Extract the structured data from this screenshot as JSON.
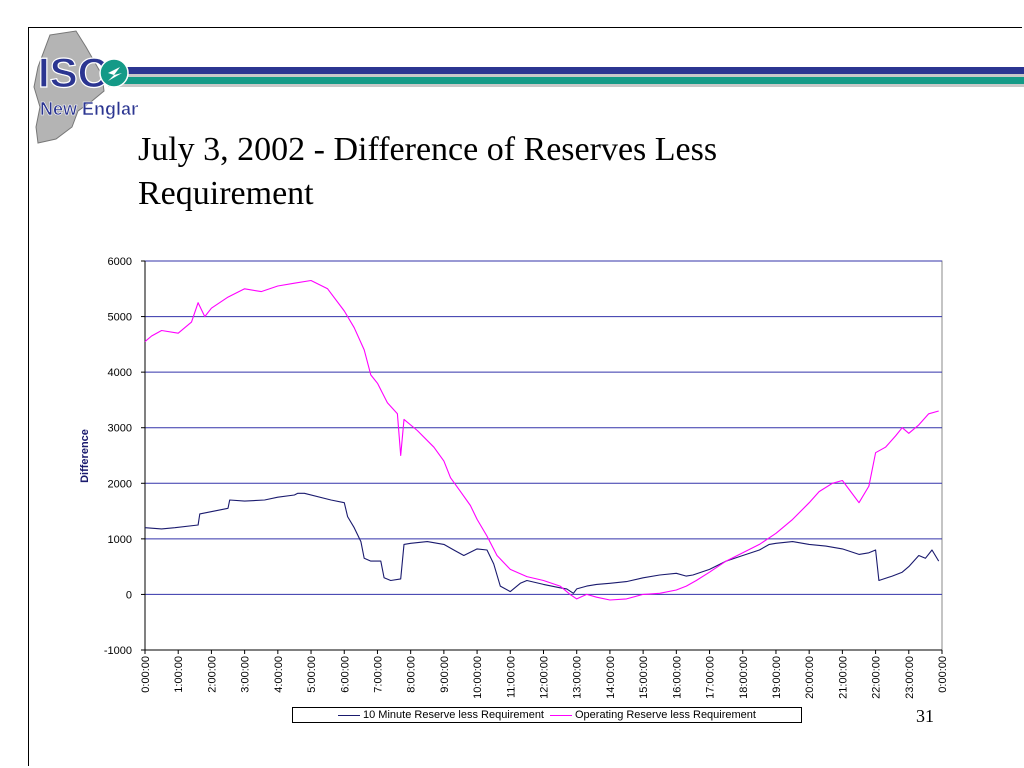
{
  "slide": {
    "title_line1": "July 3, 2002 - Difference of Reserves Less",
    "title_line2": "Requirement",
    "page_number": "31",
    "logo_text": "New England",
    "logo_mark": "ISO"
  },
  "colors": {
    "navy": "#2b3591",
    "teal": "#149a87",
    "series1": "#1a1a6e",
    "series2": "#ff00ff",
    "grid": "#3333aa"
  },
  "chart_data": {
    "type": "line",
    "title": "",
    "xlabel": "",
    "ylabel": "Difference",
    "ylim": [
      -1000,
      6000
    ],
    "yticks": [
      -1000,
      0,
      1000,
      2000,
      3000,
      4000,
      5000,
      6000
    ],
    "xlim": [
      0,
      24
    ],
    "grid": "horizontal",
    "legend": "bottom",
    "x_ticks": [
      "0:00:00",
      "1:00:00",
      "2:00:00",
      "3:00:00",
      "4:00:00",
      "5:00:00",
      "6:00:00",
      "7:00:00",
      "8:00:00",
      "9:00:00",
      "10:00:00",
      "11:00:00",
      "12:00:00",
      "13:00:00",
      "14:00:00",
      "15:00:00",
      "16:00:00",
      "17:00:00",
      "18:00:00",
      "19:00:00",
      "20:00:00",
      "21:00:00",
      "22:00:00",
      "23:00:00",
      "0:00:00"
    ],
    "series": [
      {
        "name": "10 Minute Reserve less Requirement",
        "color": "#1a1a6e",
        "x": [
          0,
          0.5,
          0.9,
          1.6,
          1.65,
          2.5,
          2.55,
          3.0,
          3.6,
          4.0,
          4.5,
          4.6,
          4.8,
          5.6,
          6.0,
          6.1,
          6.3,
          6.5,
          6.6,
          6.8,
          7.1,
          7.2,
          7.4,
          7.7,
          7.8,
          8.0,
          8.5,
          9.0,
          9.3,
          9.6,
          10.0,
          10.3,
          10.5,
          10.7,
          11.0,
          11.3,
          11.5,
          12.0,
          12.5,
          12.7,
          12.9,
          13.0,
          13.3,
          13.6,
          14.0,
          14.5,
          15.0,
          15.5,
          16.0,
          16.3,
          16.5,
          17.0,
          17.5,
          18.0,
          18.5,
          18.8,
          19.0,
          19.5,
          20.0,
          20.5,
          21.0,
          21.5,
          21.8,
          22.0,
          22.1,
          22.5,
          22.8,
          23.0,
          23.3,
          23.5,
          23.7,
          23.9
        ],
        "y": [
          1200,
          1180,
          1200,
          1250,
          1450,
          1550,
          1700,
          1680,
          1700,
          1750,
          1790,
          1820,
          1820,
          1700,
          1650,
          1400,
          1200,
          950,
          650,
          600,
          600,
          300,
          250,
          280,
          900,
          920,
          950,
          900,
          800,
          700,
          820,
          800,
          550,
          150,
          50,
          200,
          250,
          180,
          120,
          100,
          20,
          100,
          150,
          180,
          200,
          230,
          300,
          350,
          380,
          330,
          350,
          450,
          600,
          700,
          800,
          900,
          920,
          950,
          900,
          870,
          820,
          720,
          750,
          800,
          250,
          330,
          400,
          500,
          700,
          650,
          800,
          600
        ]
      },
      {
        "name": "Operating Reserve less Requirement",
        "color": "#ff00ff",
        "x": [
          0,
          0.2,
          0.5,
          1.0,
          1.4,
          1.6,
          1.8,
          2.0,
          2.5,
          3.0,
          3.5,
          4.0,
          4.5,
          5.0,
          5.5,
          6.0,
          6.3,
          6.6,
          6.8,
          7.0,
          7.3,
          7.6,
          7.7,
          7.8,
          8.2,
          8.7,
          9.0,
          9.2,
          9.5,
          9.8,
          10.0,
          10.3,
          10.6,
          11.0,
          11.5,
          12.0,
          12.5,
          12.8,
          13.0,
          13.3,
          13.6,
          14.0,
          14.5,
          15.0,
          15.5,
          16.0,
          16.3,
          16.6,
          17.0,
          17.5,
          18.0,
          18.5,
          19.0,
          19.5,
          20.0,
          20.3,
          20.7,
          21.0,
          21.5,
          21.8,
          22.0,
          22.3,
          22.6,
          22.8,
          23.0,
          23.3,
          23.6,
          23.9
        ],
        "y": [
          4550,
          4650,
          4750,
          4700,
          4900,
          5250,
          5000,
          5150,
          5350,
          5500,
          5450,
          5550,
          5600,
          5650,
          5500,
          5100,
          4800,
          4400,
          3950,
          3800,
          3450,
          3250,
          2500,
          3150,
          2950,
          2650,
          2400,
          2100,
          1850,
          1600,
          1350,
          1050,
          700,
          450,
          320,
          250,
          150,
          0,
          -80,
          0,
          -50,
          -100,
          -80,
          0,
          20,
          80,
          150,
          250,
          400,
          600,
          750,
          900,
          1100,
          1350,
          1650,
          1850,
          2000,
          2050,
          1650,
          1950,
          2550,
          2650,
          2850,
          3000,
          2900,
          3050,
          3250,
          3300
        ]
      }
    ]
  }
}
